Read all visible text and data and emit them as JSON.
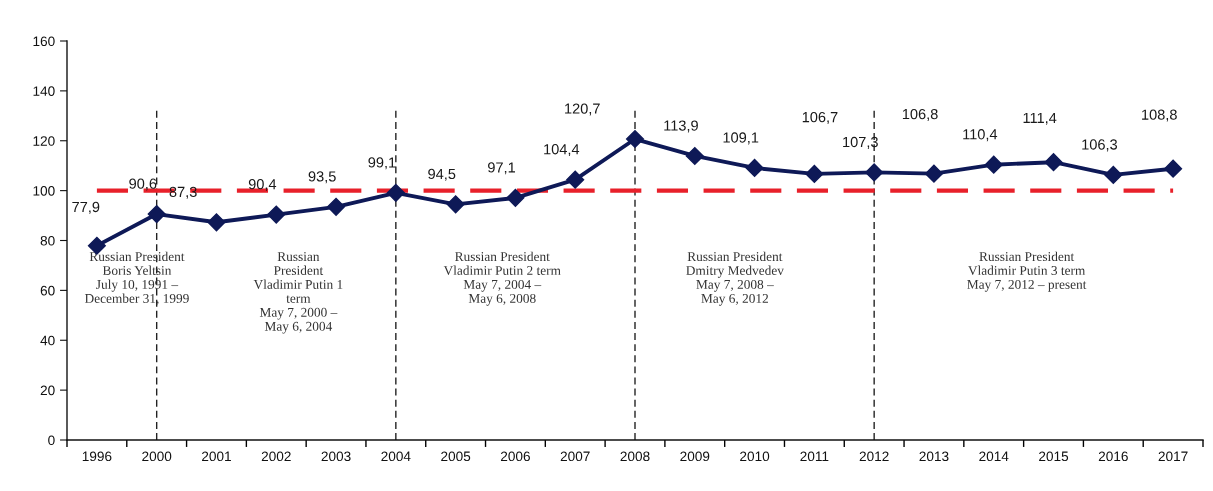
{
  "chart_data": {
    "type": "line",
    "categories": [
      "1996",
      "2000",
      "2001",
      "2002",
      "2003",
      "2004",
      "2005",
      "2006",
      "2007",
      "2008",
      "2009",
      "2010",
      "2011",
      "2012",
      "2013",
      "2014",
      "2015",
      "2016",
      "2017"
    ],
    "series": [
      {
        "color": "#0e1957",
        "values": [
          77.9,
          90.6,
          87.3,
          90.4,
          93.5,
          99.1,
          94.5,
          97.1,
          104.4,
          120.7,
          113.9,
          109.1,
          106.7,
          107.3,
          106.8,
          110.4,
          111.4,
          106.3,
          108.8
        ],
        "value_labels": [
          "77,9",
          "90,6",
          "87,3",
          "90,4",
          "93,5",
          "99,1",
          "94,5",
          "97,1",
          "104,4",
          "120,7",
          "113,9",
          "109,1",
          "106,7",
          "107,3",
          "106,8",
          "110,4",
          "111,4",
          "106,3",
          "108,8"
        ]
      }
    ],
    "ylim": [
      0,
      160
    ],
    "yticks": [
      0,
      20,
      40,
      60,
      80,
      100,
      120,
      140,
      160
    ],
    "marker": "diamond",
    "line_style": "solid",
    "grid": false,
    "ref_lines": [
      {
        "axis": "y",
        "value": 100,
        "color": "#e8202a",
        "line_style": "dashed"
      },
      {
        "axis": "x",
        "value": "2000",
        "color": "#222222",
        "line_style": "dashed"
      },
      {
        "axis": "x",
        "value": "2004",
        "color": "#222222",
        "line_style": "dashed"
      },
      {
        "axis": "x",
        "value": "2008",
        "color": "#222222",
        "line_style": "dashed"
      },
      {
        "axis": "x",
        "value": "2012",
        "color": "#222222",
        "line_style": "dashed"
      }
    ],
    "annotations": [
      "Russian President\nBoris Yeltsin\nJuly 10, 1991 –\nDecember 31, 1999",
      "Russian\nPresident\nVladimir Putin 1\nterm\nMay 7, 2000 –\nMay 6, 2004",
      "Russian President\nVladimir Putin 2 term\nMay 7, 2004 –\nMay 6, 2008",
      "Russian President\nDmitry Medvedev\nMay 7, 2008 –\nMay 6, 2012",
      "Russian President\nVladimir Putin 3 term\nMay 7, 2012 – present"
    ]
  }
}
